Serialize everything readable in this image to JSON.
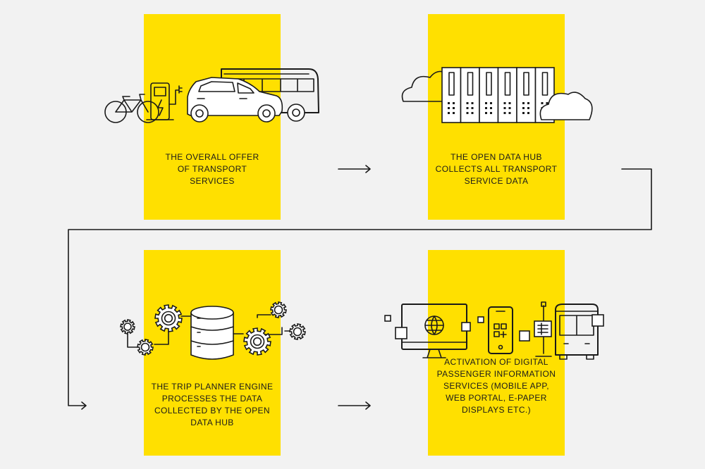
{
  "steps": [
    {
      "id": "transport-offer",
      "lines": [
        "THE OVERALL OFFER",
        "OF TRANSPORT",
        "SERVICES"
      ]
    },
    {
      "id": "open-data-hub",
      "lines": [
        "THE OPEN DATA HUB",
        "COLLECTS ALL TRANSPORT",
        "SERVICE DATA"
      ]
    },
    {
      "id": "trip-planner",
      "lines": [
        "THE TRIP PLANNER ENGINE",
        "PROCESSES THE DATA",
        "COLLECTED BY THE OPEN",
        "DATA HUB"
      ]
    },
    {
      "id": "passenger-info",
      "lines": [
        "ACTIVATION OF DIGITAL",
        "PASSENGER INFORMATION",
        "SERVICES (MOBILE APP,",
        "WEB PORTAL, E-PAPER",
        "DISPLAYS ETC.)"
      ]
    }
  ],
  "icons": {
    "step1": [
      "bicycle-icon",
      "charging-station-icon",
      "car-icon",
      "bus-icon"
    ],
    "step2": [
      "cloud-icon",
      "server-rack-icon",
      "cloud-icon"
    ],
    "step3": [
      "gear-icon",
      "database-icon"
    ],
    "step4": [
      "monitor-globe-icon",
      "smartphone-app-icon",
      "info-display-pole-icon",
      "bus-front-icon"
    ]
  },
  "colors": {
    "background": "#f2f2f2",
    "accent": "#ffe000",
    "line": "#1a1a1a"
  }
}
